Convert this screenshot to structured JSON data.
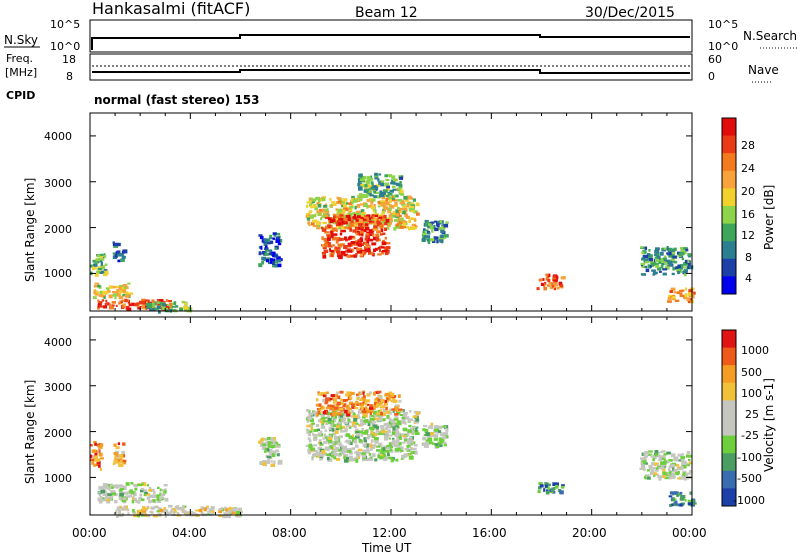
{
  "header": {
    "station": "Hankasalmi (fitACF)",
    "beam": "Beam 12",
    "date": "30/Dec/2015"
  },
  "info_panels": {
    "nsky_label": "N.Sky",
    "nsky_ticks": [
      "10^5",
      "10^0"
    ],
    "nsearch_label": "N.Search",
    "nsearch_ticks": [
      "10^5",
      "10^0"
    ],
    "freq_label_1": "Freq.",
    "freq_label_2": "[MHz]",
    "freq_ticks": [
      "18",
      "8"
    ],
    "nave_label": "Nave",
    "nave_ticks": [
      "60",
      "0"
    ],
    "cpid_label": "CPID",
    "cpid_value": "normal (fast stereo) 153"
  },
  "power_panel": {
    "ylabel": "Slant Range [km]",
    "yticks": [
      "4000",
      "3000",
      "2000",
      "1000"
    ],
    "colorbar_label": "Power [dB]",
    "colorbar_ticks": [
      "28",
      "24",
      "20",
      "16",
      "12",
      "8",
      "4"
    ],
    "colors": [
      "#0000ee",
      "#1d3fa8",
      "#2c7e91",
      "#3ea65a",
      "#8ed44a",
      "#f2d12c",
      "#f7a23a",
      "#f37a1f",
      "#ea3a16",
      "#e10c0c"
    ]
  },
  "velocity_panel": {
    "ylabel": "Slant Range [km]",
    "yticks": [
      "4000",
      "3000",
      "2000",
      "1000"
    ],
    "colorbar_label": "Velocity [m s-1]",
    "colorbar_ticks": [
      "1000",
      "500",
      "100",
      "25",
      "-25",
      "-100",
      "-500",
      "-1000"
    ],
    "colors": [
      "#1d3fa8",
      "#3a6cb0",
      "#4b9e62",
      "#6ecf3c",
      "#c6c6c0",
      "#c6c6c0",
      "#f2c13a",
      "#f39d25",
      "#ee5a1a",
      "#e11414"
    ]
  },
  "x_axis": {
    "label": "Time UT",
    "ticks": [
      "00:00",
      "04:00",
      "08:00",
      "12:00",
      "16:00",
      "20:00",
      "00:00"
    ]
  },
  "chart_data": {
    "type": "heatmap",
    "x": {
      "label": "Time UT",
      "range_hours": [
        0,
        24
      ],
      "ticks": [
        "00:00",
        "04:00",
        "08:00",
        "12:00",
        "16:00",
        "20:00",
        "00:00"
      ]
    },
    "y": {
      "label": "Slant Range [km]",
      "range_km": [
        180,
        4500
      ],
      "ticks": [
        1000,
        2000,
        3000,
        4000
      ]
    },
    "panels": [
      {
        "name": "Power",
        "colorbar": {
          "label": "Power [dB]",
          "range": [
            0,
            30
          ],
          "ticks": [
            4,
            8,
            12,
            16,
            20,
            24,
            28
          ]
        },
        "regions": [
          {
            "t": [
              0.0,
              0.6
            ],
            "r": [
              1000,
              1500
            ],
            "level": 0.4
          },
          {
            "t": [
              0.9,
              1.3
            ],
            "r": [
              1300,
              1700
            ],
            "level": 0.2
          },
          {
            "t": [
              0.1,
              1.6
            ],
            "r": [
              500,
              800
            ],
            "level": 0.55
          },
          {
            "t": [
              0.2,
              3.2
            ],
            "r": [
              250,
              450
            ],
            "level": 0.85
          },
          {
            "t": [
              2.2,
              4.0
            ],
            "r": [
              200,
              400
            ],
            "level": 0.35
          },
          {
            "t": [
              6.7,
              7.5
            ],
            "r": [
              1200,
              1900
            ],
            "level": 0.2
          },
          {
            "t": [
              8.6,
              13.0
            ],
            "r": [
              2000,
              2700
            ],
            "level": 0.55
          },
          {
            "t": [
              9.2,
              11.8
            ],
            "r": [
              1400,
              2300
            ],
            "level": 0.85
          },
          {
            "t": [
              10.6,
              12.4
            ],
            "r": [
              2700,
              3200
            ],
            "level": 0.35
          },
          {
            "t": [
              13.2,
              14.2
            ],
            "r": [
              1700,
              2200
            ],
            "level": 0.3
          },
          {
            "t": [
              17.8,
              18.8
            ],
            "r": [
              700,
              1000
            ],
            "level": 0.8
          },
          {
            "t": [
              21.9,
              23.9
            ],
            "r": [
              1000,
              1600
            ],
            "level": 0.3
          },
          {
            "t": [
              23.0,
              24.0
            ],
            "r": [
              400,
              700
            ],
            "level": 0.7
          }
        ]
      },
      {
        "name": "Velocity",
        "colorbar": {
          "label": "Velocity [m s-1]",
          "range": [
            -1000,
            1000
          ],
          "ticks": [
            1000,
            500,
            100,
            25,
            -25,
            -100,
            -500,
            -1000
          ]
        },
        "regions": [
          {
            "t": [
              0.0,
              0.4
            ],
            "r": [
              1200,
              1800
            ],
            "level": 0.8
          },
          {
            "t": [
              0.9,
              1.3
            ],
            "r": [
              1300,
              1800
            ],
            "level": 0.75
          },
          {
            "t": [
              0.3,
              3.0
            ],
            "r": [
              500,
              900
            ],
            "level": 0.45
          },
          {
            "t": [
              1.0,
              6.0
            ],
            "r": [
              180,
              400
            ],
            "level": 0.55
          },
          {
            "t": [
              6.7,
              7.5
            ],
            "r": [
              1300,
              1900
            ],
            "level": 0.45
          },
          {
            "t": [
              8.6,
              13.0
            ],
            "r": [
              1400,
              2500
            ],
            "level": 0.45
          },
          {
            "t": [
              9.0,
              12.3
            ],
            "r": [
              2400,
              2900
            ],
            "level": 0.75
          },
          {
            "t": [
              13.2,
              14.2
            ],
            "r": [
              1700,
              2200
            ],
            "level": 0.45
          },
          {
            "t": [
              17.8,
              18.8
            ],
            "r": [
              700,
              900
            ],
            "level": 0.2
          },
          {
            "t": [
              21.9,
              23.9
            ],
            "r": [
              1000,
              1600
            ],
            "level": 0.45
          },
          {
            "t": [
              23.0,
              24.0
            ],
            "r": [
              400,
              700
            ],
            "level": 0.2
          }
        ]
      }
    ]
  }
}
